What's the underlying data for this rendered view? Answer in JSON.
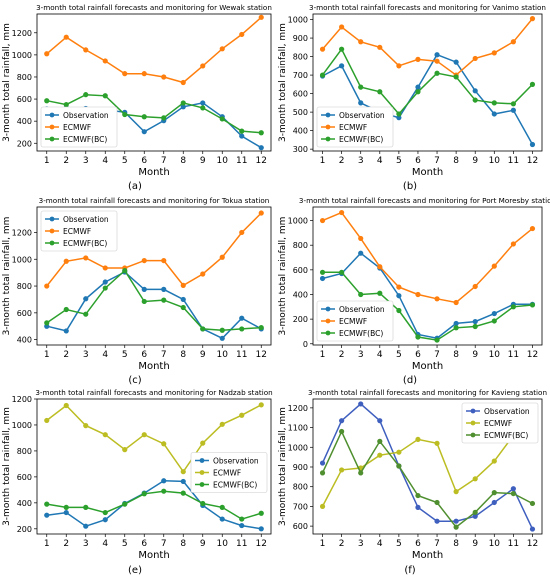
{
  "chart_data": [
    {
      "type": "line",
      "panel_label": "(a)",
      "title": "3-month total rainfall forecasts and monitoring for Wewak station",
      "xlabel": "Month",
      "ylabel": "3-month total rainfall, mm",
      "x": [
        1,
        2,
        3,
        4,
        5,
        6,
        7,
        8,
        9,
        10,
        11,
        12
      ],
      "xlim": [
        0.5,
        12.5
      ],
      "ylim": [
        130,
        1370
      ],
      "yticks": [
        200,
        400,
        600,
        800,
        1000,
        1200
      ],
      "legend_position": "bottom-left",
      "series": [
        {
          "name": "Observation",
          "color": "#1f77b4",
          "values": [
            510,
            520,
            515,
            505,
            480,
            305,
            405,
            530,
            565,
            440,
            265,
            160
          ]
        },
        {
          "name": "ECMWF",
          "color": "#ff7f0e",
          "values": [
            1010,
            1160,
            1045,
            945,
            830,
            830,
            800,
            750,
            900,
            1055,
            1185,
            1340
          ]
        },
        {
          "name": "ECMWF(BC)",
          "color": "#2ca02c",
          "values": [
            585,
            550,
            640,
            630,
            460,
            440,
            430,
            565,
            520,
            420,
            310,
            295
          ]
        }
      ]
    },
    {
      "type": "line",
      "panel_label": "(b)",
      "title": "3-month total rainfall forecasts and monitoring for Vanimo station",
      "xlabel": "Month",
      "ylabel": "3-month total rainfall, mm",
      "x": [
        1,
        2,
        3,
        4,
        5,
        6,
        7,
        8,
        9,
        10,
        11,
        12
      ],
      "xlim": [
        0.5,
        12.5
      ],
      "ylim": [
        290,
        1030
      ],
      "yticks": [
        300,
        400,
        500,
        600,
        700,
        800,
        900,
        1000
      ],
      "legend_position": "bottom-left",
      "series": [
        {
          "name": "Observation",
          "color": "#1f77b4",
          "values": [
            695,
            750,
            550,
            500,
            470,
            635,
            810,
            770,
            615,
            490,
            510,
            325
          ]
        },
        {
          "name": "ECMWF",
          "color": "#ff7f0e",
          "values": [
            840,
            960,
            880,
            850,
            750,
            785,
            775,
            700,
            790,
            820,
            880,
            1005
          ]
        },
        {
          "name": "ECMWF(BC)",
          "color": "#2ca02c",
          "values": [
            700,
            840,
            635,
            610,
            490,
            610,
            710,
            690,
            565,
            550,
            545,
            650
          ]
        }
      ]
    },
    {
      "type": "line",
      "panel_label": "(c)",
      "title": "3-month total rainfall forecasts and monitoring for Tokua station",
      "xlabel": "Month",
      "ylabel": "3-month total rainfall, mm",
      "x": [
        1,
        2,
        3,
        4,
        5,
        6,
        7,
        8,
        9,
        10,
        11,
        12
      ],
      "xlim": [
        0.5,
        12.5
      ],
      "ylim": [
        360,
        1390
      ],
      "yticks": [
        400,
        600,
        800,
        1000,
        1200
      ],
      "legend_position": "top-left",
      "series": [
        {
          "name": "Observation",
          "color": "#1f77b4",
          "values": [
            500,
            465,
            705,
            830,
            905,
            775,
            775,
            700,
            480,
            410,
            560,
            480
          ]
        },
        {
          "name": "ECMWF",
          "color": "#ff7f0e",
          "values": [
            800,
            985,
            1010,
            935,
            935,
            990,
            990,
            805,
            890,
            1015,
            1200,
            1345
          ]
        },
        {
          "name": "ECMWF(BC)",
          "color": "#2ca02c",
          "values": [
            525,
            625,
            590,
            785,
            915,
            685,
            695,
            640,
            480,
            470,
            480,
            490
          ]
        }
      ]
    },
    {
      "type": "line",
      "panel_label": "(d)",
      "title": "3-month total rainfall forecasts and monitoring for Port Moresby station",
      "xlabel": "Month",
      "ylabel": "3-month total rainfall, mm",
      "x": [
        1,
        2,
        3,
        4,
        5,
        6,
        7,
        8,
        9,
        10,
        11,
        12
      ],
      "xlim": [
        0.5,
        12.5
      ],
      "ylim": [
        -10,
        1110
      ],
      "yticks": [
        0,
        200,
        400,
        600,
        800,
        1000
      ],
      "legend_position": "bottom-left",
      "series": [
        {
          "name": "Observation",
          "color": "#1f77b4",
          "values": [
            530,
            570,
            735,
            615,
            390,
            75,
            45,
            165,
            180,
            245,
            320,
            320
          ]
        },
        {
          "name": "ECMWF",
          "color": "#ff7f0e",
          "values": [
            1000,
            1065,
            855,
            625,
            460,
            400,
            365,
            335,
            465,
            630,
            810,
            935
          ]
        },
        {
          "name": "ECMWF(BC)",
          "color": "#2ca02c",
          "values": [
            580,
            580,
            400,
            410,
            270,
            55,
            30,
            130,
            140,
            185,
            300,
            315
          ]
        }
      ]
    },
    {
      "type": "line",
      "panel_label": "(e)",
      "title": "3-month total rainfall forecasts and monitoring for Nadzab station",
      "xlabel": "Month",
      "ylabel": "3-month total rainfall, mm",
      "x": [
        1,
        2,
        3,
        4,
        5,
        6,
        7,
        8,
        9,
        10,
        11,
        12
      ],
      "xlim": [
        0.5,
        12.5
      ],
      "ylim": [
        160,
        1200
      ],
      "yticks": [
        200,
        400,
        600,
        800,
        1000,
        1200
      ],
      "legend_position": "right",
      "series": [
        {
          "name": "Observation",
          "color": "#1f77b4",
          "values": [
            305,
            325,
            220,
            270,
            395,
            475,
            570,
            565,
            380,
            275,
            225,
            200
          ]
        },
        {
          "name": "ECMWF",
          "color": "#bcbd22",
          "values": [
            1035,
            1150,
            995,
            925,
            810,
            925,
            855,
            640,
            860,
            1005,
            1075,
            1155
          ]
        },
        {
          "name": "ECMWF(BC)",
          "color": "#2ca02c",
          "values": [
            390,
            365,
            365,
            325,
            390,
            470,
            490,
            475,
            395,
            365,
            275,
            320
          ]
        }
      ]
    },
    {
      "type": "line",
      "panel_label": "(f)",
      "title": "3-month total rainfall forecasts and monitoring for Kavieng station",
      "xlabel": "Month",
      "ylabel": "3-month total rainfall, mm",
      "x": [
        1,
        2,
        3,
        4,
        5,
        6,
        7,
        8,
        9,
        10,
        11,
        12
      ],
      "xlim": [
        0.5,
        12.5
      ],
      "ylim": [
        560,
        1245
      ],
      "yticks": [
        600,
        700,
        800,
        900,
        1000,
        1100,
        1200
      ],
      "legend_position": "top-right",
      "series": [
        {
          "name": "Observation",
          "color": "#3f5fbf",
          "values": [
            920,
            1135,
            1220,
            1135,
            905,
            695,
            625,
            625,
            650,
            720,
            790,
            585
          ]
        },
        {
          "name": "ECMWF",
          "color": "#bcbd22",
          "values": [
            700,
            885,
            895,
            960,
            975,
            1040,
            1020,
            775,
            840,
            930,
            1060,
            1165
          ]
        },
        {
          "name": "ECMWF(BC)",
          "color": "#4f8f2f",
          "values": [
            870,
            1080,
            870,
            1030,
            905,
            755,
            720,
            595,
            670,
            770,
            765,
            715
          ]
        }
      ]
    }
  ]
}
